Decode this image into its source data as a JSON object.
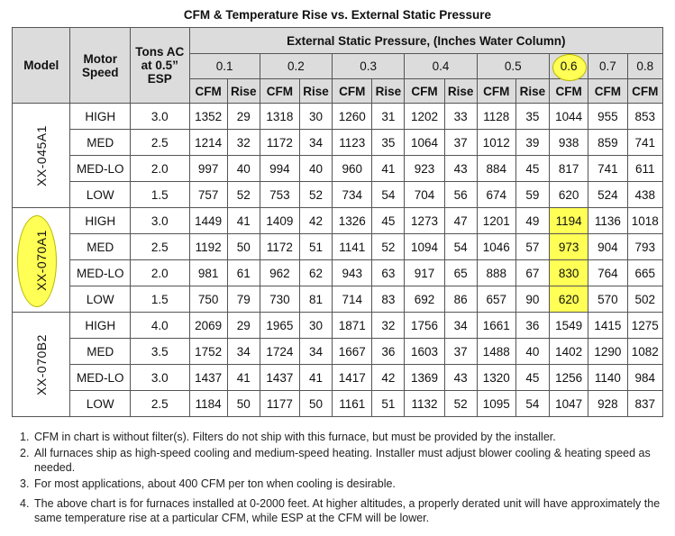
{
  "title": "CFM & Temperature Rise vs. External Static Pressure",
  "headers": {
    "model": "Model",
    "motor_speed": "Motor Speed",
    "tons": "Tons AC at 0.5” ESP",
    "esp": "External Static Pressure, (Inches Water Column)",
    "pressures": [
      "0.1",
      "0.2",
      "0.3",
      "0.4",
      "0.5",
      "0.6",
      "0.7",
      "0.8"
    ],
    "cfm": "CFM",
    "rise": "Rise"
  },
  "models": [
    {
      "name": "XX-045A1",
      "rows": [
        {
          "speed": "HIGH",
          "tons": "3.0",
          "vals": [
            "1352",
            "29",
            "1318",
            "30",
            "1260",
            "31",
            "1202",
            "33",
            "1128",
            "35",
            "1044",
            "955",
            "853"
          ]
        },
        {
          "speed": "MED",
          "tons": "2.5",
          "vals": [
            "1214",
            "32",
            "1172",
            "34",
            "1123",
            "35",
            "1064",
            "37",
            "1012",
            "39",
            "938",
            "859",
            "741"
          ]
        },
        {
          "speed": "MED-LO",
          "tons": "2.0",
          "vals": [
            "997",
            "40",
            "994",
            "40",
            "960",
            "41",
            "923",
            "43",
            "884",
            "45",
            "817",
            "741",
            "611"
          ]
        },
        {
          "speed": "LOW",
          "tons": "1.5",
          "vals": [
            "757",
            "52",
            "753",
            "52",
            "734",
            "54",
            "704",
            "56",
            "674",
            "59",
            "620",
            "524",
            "438"
          ]
        }
      ]
    },
    {
      "name": "XX-070A1",
      "rows": [
        {
          "speed": "HIGH",
          "tons": "3.0",
          "vals": [
            "1449",
            "41",
            "1409",
            "42",
            "1326",
            "45",
            "1273",
            "47",
            "1201",
            "49",
            "1194",
            "1136",
            "1018"
          ]
        },
        {
          "speed": "MED",
          "tons": "2.5",
          "vals": [
            "1192",
            "50",
            "1172",
            "51",
            "1141",
            "52",
            "1094",
            "54",
            "1046",
            "57",
            "973",
            "904",
            "793"
          ]
        },
        {
          "speed": "MED-LO",
          "tons": "2.0",
          "vals": [
            "981",
            "61",
            "962",
            "62",
            "943",
            "63",
            "917",
            "65",
            "888",
            "67",
            "830",
            "764",
            "665"
          ]
        },
        {
          "speed": "LOW",
          "tons": "1.5",
          "vals": [
            "750",
            "79",
            "730",
            "81",
            "714",
            "83",
            "692",
            "86",
            "657",
            "90",
            "620",
            "570",
            "502"
          ]
        }
      ]
    },
    {
      "name": "XX-070B2",
      "rows": [
        {
          "speed": "HIGH",
          "tons": "4.0",
          "vals": [
            "2069",
            "29",
            "1965",
            "30",
            "1871",
            "32",
            "1756",
            "34",
            "1661",
            "36",
            "1549",
            "1415",
            "1275"
          ]
        },
        {
          "speed": "MED",
          "tons": "3.5",
          "vals": [
            "1752",
            "34",
            "1724",
            "34",
            "1667",
            "36",
            "1603",
            "37",
            "1488",
            "40",
            "1402",
            "1290",
            "1082"
          ]
        },
        {
          "speed": "MED-LO",
          "tons": "3.0",
          "vals": [
            "1437",
            "41",
            "1437",
            "41",
            "1417",
            "42",
            "1369",
            "43",
            "1320",
            "45",
            "1256",
            "1140",
            "984"
          ]
        },
        {
          "speed": "LOW",
          "tons": "2.5",
          "vals": [
            "1184",
            "50",
            "1177",
            "50",
            "1161",
            "51",
            "1132",
            "52",
            "1095",
            "54",
            "1047",
            "928",
            "837"
          ]
        }
      ]
    }
  ],
  "highlight_color": "#ffff55",
  "notes": [
    {
      "num": "1.",
      "text": "CFM in chart is without filter(s). Filters do not ship with this furnace, but must be provided by the installer."
    },
    {
      "num": "2.",
      "text": "All furnaces ship as high-speed cooling and medium-speed heating. Installer must adjust blower cooling & heating speed as needed."
    },
    {
      "num": "3.",
      "text": "For most applications, about 400 CFM per ton when cooling is desirable."
    },
    {
      "num": "4.",
      "text": "The above chart is for furnaces installed at 0-2000 feet. At higher altitudes, a properly derated unit will have approximately the same temperature rise at a particular CFM, while ESP at the CFM will be lower."
    }
  ]
}
